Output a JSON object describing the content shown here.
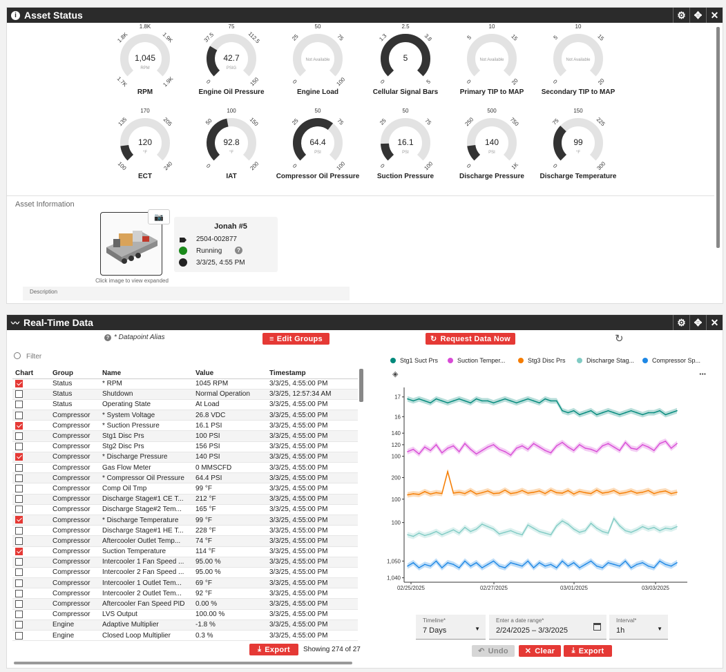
{
  "asset_status": {
    "title": "Asset Status",
    "gauges": [
      {
        "name": "RPM",
        "value": "1,045",
        "unit": "RPM",
        "top": "1.8K",
        "tl": "1.8K",
        "tr": "1.9K",
        "bl": "1.7K",
        "br": "1.9K",
        "level": 0
      },
      {
        "name": "Engine Oil Pressure",
        "value": "42.7",
        "unit": "PSIG",
        "top": "75",
        "tl": "37.5",
        "tr": "112.5",
        "bl": "0",
        "br": "150",
        "level": 0.28
      },
      {
        "name": "Engine Load",
        "value": "",
        "unit": "Not Available",
        "top": "50",
        "tl": "25",
        "tr": "75",
        "bl": "0",
        "br": "100",
        "level": 0
      },
      {
        "name": "Cellular Signal Bars",
        "value": "5",
        "unit": "",
        "top": "2.5",
        "tl": "1.3",
        "tr": "3.8",
        "bl": "0",
        "br": "5",
        "level": 1
      },
      {
        "name": "Primary TIP to MAP",
        "value": "",
        "unit": "Not Available",
        "top": "10",
        "tl": "5",
        "tr": "15",
        "bl": "0",
        "br": "20",
        "level": 0
      },
      {
        "name": "Secondary TIP to MAP",
        "value": "",
        "unit": "Not Available",
        "top": "10",
        "tl": "5",
        "tr": "15",
        "bl": "0",
        "br": "20",
        "level": 0
      },
      {
        "name": "ECT",
        "value": "120",
        "unit": "°F",
        "top": "170",
        "tl": "135",
        "tr": "205",
        "bl": "100",
        "br": "240",
        "level": 0.14
      },
      {
        "name": "IAT",
        "value": "92.8",
        "unit": "°F",
        "top": "100",
        "tl": "50",
        "tr": "150",
        "bl": "0",
        "br": "200",
        "level": 0.46
      },
      {
        "name": "Compressor Oil Pressure",
        "value": "64.4",
        "unit": "PSI",
        "top": "50",
        "tl": "25",
        "tr": "75",
        "bl": "0",
        "br": "100",
        "level": 0.64
      },
      {
        "name": "Suction Pressure",
        "value": "16.1",
        "unit": "PSI",
        "top": "50",
        "tl": "25",
        "tr": "75",
        "bl": "0",
        "br": "100",
        "level": 0.16
      },
      {
        "name": "Discharge Pressure",
        "value": "140",
        "unit": "PSI",
        "top": "500",
        "tl": "250",
        "tr": "750",
        "bl": "0",
        "br": "1K",
        "level": 0.14
      },
      {
        "name": "Discharge Temperature",
        "value": "99",
        "unit": "°F",
        "top": "150",
        "tl": "75",
        "tr": "225",
        "bl": "0",
        "br": "300",
        "level": 0.33
      }
    ],
    "asset_info_label": "Asset Information",
    "image_caption": "Click image to view expanded",
    "asset_name": "Jonah #5",
    "asset_id": "2504-002877",
    "asset_state": "Running",
    "asset_time": "3/3/25, 4:55 PM",
    "description_label": "Description",
    "colors": {
      "header": "#2b2b2b",
      "gauge_fill": "#333333",
      "gauge_track": "#e0e0e0",
      "running": "#2e7d32",
      "accent": "#e53935"
    }
  },
  "realtime": {
    "title": "Real-Time Data",
    "alias_note": "* Datapoint Alias",
    "edit_groups": "Edit Groups",
    "request_data": "Request Data Now",
    "filter_placeholder": "Filter",
    "columns": [
      "Chart",
      "Group",
      "Name",
      "Value",
      "Timestamp"
    ],
    "rows": [
      {
        "c": true,
        "g": "Status",
        "n": "* RPM",
        "v": "1045 RPM",
        "t": "3/3/25, 4:55:00 PM"
      },
      {
        "c": false,
        "g": "Status",
        "n": "Shutdown",
        "v": "Normal Operation",
        "t": "3/3/25, 12:57:34 AM"
      },
      {
        "c": false,
        "g": "Status",
        "n": "Operating State",
        "v": "At Load",
        "t": "3/3/25, 4:55:00 PM"
      },
      {
        "c": false,
        "g": "Compressor",
        "n": "* System Voltage",
        "v": "26.8 VDC",
        "t": "3/3/25, 4:55:00 PM"
      },
      {
        "c": true,
        "g": "Compressor",
        "n": "* Suction Pressure",
        "v": "16.1 PSI",
        "t": "3/3/25, 4:55:00 PM"
      },
      {
        "c": false,
        "g": "Compressor",
        "n": "Stg1 Disc Prs",
        "v": "100 PSI",
        "t": "3/3/25, 4:55:00 PM"
      },
      {
        "c": false,
        "g": "Compressor",
        "n": "Stg2 Disc Prs",
        "v": "156 PSI",
        "t": "3/3/25, 4:55:00 PM"
      },
      {
        "c": true,
        "g": "Compressor",
        "n": "* Discharge Pressure",
        "v": "140 PSI",
        "t": "3/3/25, 4:55:00 PM"
      },
      {
        "c": false,
        "g": "Compressor",
        "n": "Gas Flow Meter",
        "v": "0 MMSCFD",
        "t": "3/3/25, 4:55:00 PM"
      },
      {
        "c": false,
        "g": "Compressor",
        "n": "* Compressor Oil Pressure",
        "v": "64.4 PSI",
        "t": "3/3/25, 4:55:00 PM"
      },
      {
        "c": false,
        "g": "Compressor",
        "n": "Comp Oil Tmp",
        "v": "99 °F",
        "t": "3/3/25, 4:55:00 PM"
      },
      {
        "c": false,
        "g": "Compressor",
        "n": "Discharge Stage#1 CE T...",
        "v": "212 °F",
        "t": "3/3/25, 4:55:00 PM"
      },
      {
        "c": false,
        "g": "Compressor",
        "n": "Discharge Stage#2 Tem...",
        "v": "165 °F",
        "t": "3/3/25, 4:55:00 PM"
      },
      {
        "c": true,
        "g": "Compressor",
        "n": "* Discharge Temperature",
        "v": "99 °F",
        "t": "3/3/25, 4:55:00 PM"
      },
      {
        "c": false,
        "g": "Compressor",
        "n": "Discharge Stage#1 HE T...",
        "v": "228 °F",
        "t": "3/3/25, 4:55:00 PM"
      },
      {
        "c": false,
        "g": "Compressor",
        "n": "Aftercooler Outlet Temp...",
        "v": "74 °F",
        "t": "3/3/25, 4:55:00 PM"
      },
      {
        "c": true,
        "g": "Compressor",
        "n": "Suction Temperature",
        "v": "114 °F",
        "t": "3/3/25, 4:55:00 PM"
      },
      {
        "c": false,
        "g": "Compressor",
        "n": "Intercooler 1 Fan Speed ...",
        "v": "95.00 %",
        "t": "3/3/25, 4:55:00 PM"
      },
      {
        "c": false,
        "g": "Compressor",
        "n": "Intercooler 2 Fan Speed ...",
        "v": "95.00 %",
        "t": "3/3/25, 4:55:00 PM"
      },
      {
        "c": false,
        "g": "Compressor",
        "n": "Intercooler 1 Outlet Tem...",
        "v": "69 °F",
        "t": "3/3/25, 4:55:00 PM"
      },
      {
        "c": false,
        "g": "Compressor",
        "n": "Intercooler 2 Outlet Tem...",
        "v": "92 °F",
        "t": "3/3/25, 4:55:00 PM"
      },
      {
        "c": false,
        "g": "Compressor",
        "n": "Aftercooler Fan Speed PID",
        "v": "0.00 %",
        "t": "3/3/25, 4:55:00 PM"
      },
      {
        "c": false,
        "g": "Compressor",
        "n": "LVS Output",
        "v": "100.00 %",
        "t": "3/3/25, 4:55:00 PM"
      },
      {
        "c": false,
        "g": "Engine",
        "n": "Adaptive Multiplier",
        "v": "-1.8 %",
        "t": "3/3/25, 4:55:00 PM"
      },
      {
        "c": false,
        "g": "Engine",
        "n": "Closed Loop Multiplier",
        "v": "0.3 %",
        "t": "3/3/25, 4:55:00 PM"
      }
    ],
    "export_label": "Export",
    "showing": "Showing 274 of 27",
    "timeline_label": "Timeline*",
    "timeline_value": "7 Days",
    "range_label": "Enter a date range*",
    "range_value": "2/24/2025 – 3/3/2025",
    "interval_label": "Interval*",
    "interval_value": "1h",
    "undo_label": "Undo",
    "clear_label": "Clear",
    "export2_label": "Export"
  },
  "chart_data": {
    "type": "line",
    "x_ticks": [
      "02/25/2025",
      "02/27/2025",
      "03/01/2025",
      "03/03/2025"
    ],
    "legend_placement": "top",
    "series": [
      {
        "name": "Stg1 Suct Prs",
        "color": "#00897b",
        "yticks": [
          "17",
          "16"
        ],
        "values": [
          16.9,
          16.8,
          16.9,
          16.8,
          16.7,
          16.9,
          16.8,
          16.7,
          16.8,
          16.9,
          16.8,
          16.7,
          16.9,
          16.8,
          16.8,
          16.7,
          16.8,
          16.9,
          16.8,
          16.7,
          16.8,
          16.9,
          16.8,
          16.7,
          16.9,
          16.8,
          16.8,
          16.3,
          16.2,
          16.3,
          16.1,
          16.2,
          16.3,
          16.1,
          16.2,
          16.3,
          16.2,
          16.1,
          16.2,
          16.3,
          16.2,
          16.1,
          16.2,
          16.2,
          16.3,
          16.1,
          16.2,
          16.3
        ],
        "ylim": [
          15.8,
          17.2
        ]
      },
      {
        "name": "Suction Temper...",
        "color": "#d84bd6",
        "yticks": [
          "140",
          "120",
          "100"
        ],
        "values": [
          108,
          112,
          104,
          116,
          110,
          120,
          106,
          114,
          118,
          108,
          122,
          112,
          104,
          110,
          116,
          120,
          112,
          108,
          102,
          114,
          118,
          112,
          122,
          116,
          110,
          106,
          118,
          124,
          116,
          110,
          120,
          114,
          112,
          108,
          118,
          122,
          116,
          110,
          124,
          114,
          112,
          120,
          116,
          110,
          122,
          126,
          114,
          122
        ],
        "ylim": [
          90,
          145
        ]
      },
      {
        "name": "Stg3 Disc Prs",
        "color": "#f57c00",
        "yticks": [
          "200",
          "100"
        ],
        "values": [
          120,
          125,
          122,
          135,
          124,
          130,
          126,
          228,
          128,
          132,
          126,
          140,
          124,
          130,
          138,
          126,
          128,
          142,
          126,
          130,
          140,
          128,
          132,
          138,
          126,
          142,
          130,
          128,
          140,
          124,
          136,
          130,
          126,
          142,
          128,
          132,
          140,
          126,
          130,
          138,
          128,
          132,
          140,
          126,
          134,
          138,
          126,
          132
        ],
        "ylim": [
          80,
          240
        ]
      },
      {
        "name": "Discharge Stag...",
        "color": "#80cbc4",
        "yticks": [
          "100"
        ],
        "values": [
          70,
          66,
          74,
          68,
          72,
          78,
          70,
          76,
          82,
          74,
          88,
          78,
          84,
          96,
          90,
          84,
          72,
          76,
          80,
          74,
          70,
          94,
          86,
          78,
          74,
          70,
          92,
          104,
          96,
          84,
          76,
          80,
          98,
          86,
          78,
          74,
          110,
          92,
          80,
          76,
          82,
          90,
          84,
          88,
          80,
          86,
          84,
          90
        ],
        "ylim": [
          50,
          130
        ]
      },
      {
        "name": "Compressor Sp...",
        "color": "#1e88e5",
        "yticks": [
          "1,050",
          "1,040"
        ],
        "values": [
          1047,
          1049,
          1046,
          1048,
          1047,
          1050,
          1046,
          1049,
          1048,
          1046,
          1050,
          1047,
          1049,
          1046,
          1048,
          1050,
          1047,
          1046,
          1049,
          1048,
          1047,
          1050,
          1046,
          1049,
          1047,
          1048,
          1046,
          1050,
          1047,
          1049,
          1046,
          1048,
          1050,
          1047,
          1046,
          1049,
          1048,
          1047,
          1050,
          1046,
          1048,
          1049,
          1047,
          1046,
          1050,
          1048,
          1047,
          1049
        ],
        "ylim": [
          1039,
          1058
        ]
      }
    ]
  }
}
